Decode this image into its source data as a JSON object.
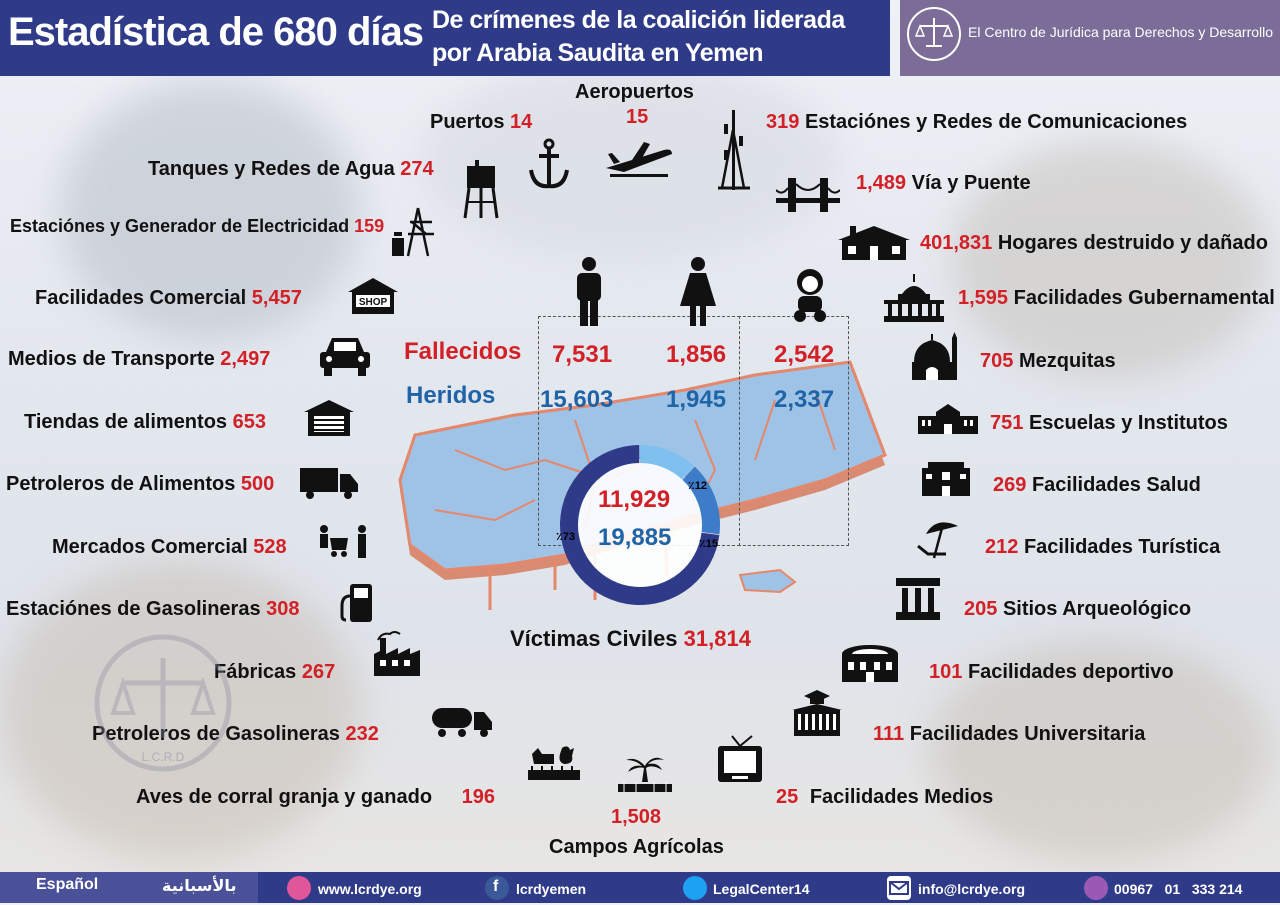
{
  "header": {
    "title": "Estadística de 680 días",
    "subtitle": "De crímenes de la coalición liderada por Arabia Saudita en Yemen",
    "org_name": "El Centro de Jurídica para Derechos y Desarrollo",
    "org_logo_text": "L.C.R.D"
  },
  "left_items": [
    {
      "label": "Puertos",
      "value": "14",
      "icon": "anchor-icon"
    },
    {
      "label": "Tanques y Redes de Agua",
      "value": "274",
      "icon": "water-tower-icon"
    },
    {
      "label": "Estaciónes y Generador de Electricidad",
      "value": "159",
      "icon": "power-station-icon"
    },
    {
      "label": "Facilidades Comercial",
      "value": "5,457",
      "icon": "shop-icon",
      "icon_text": "SHOP"
    },
    {
      "label": "Medios de Transporte",
      "value": "2,497",
      "icon": "car-icon"
    },
    {
      "label": "Tiendas de alimentos",
      "value": "653",
      "icon": "store-icon"
    },
    {
      "label": "Petroleros de Alimentos",
      "value": "500",
      "icon": "truck-icon"
    },
    {
      "label": "Mercados Comercial",
      "value": "528",
      "icon": "market-icon"
    },
    {
      "label": "Estaciónes de Gasolineras",
      "value": "308",
      "icon": "fuel-pump-icon"
    },
    {
      "label": "Fábricas",
      "value": "267",
      "icon": "factory-icon"
    },
    {
      "label": "Petroleros de Gasolineras",
      "value": "232",
      "icon": "tanker-truck-icon"
    },
    {
      "label": "Aves de corral granja y ganado",
      "value": "196",
      "icon": "livestock-icon"
    }
  ],
  "right_items": [
    {
      "label": "Estaciónes y Redes de Comunicaciones",
      "value": "319",
      "icon": "antenna-tower-icon"
    },
    {
      "label": "Vía y Puente",
      "value": "1,489",
      "icon": "bridge-icon"
    },
    {
      "label": "Hogares destruido y dañado",
      "value": "401,831",
      "icon": "house-icon"
    },
    {
      "label": "Facilidades Gubernamental",
      "value": "1,595",
      "icon": "government-building-icon"
    },
    {
      "label": "Mezquitas",
      "value": "705",
      "icon": "mosque-icon"
    },
    {
      "label": "Escuelas y Institutos",
      "value": "751",
      "icon": "school-icon"
    },
    {
      "label": "Facilidades Salud",
      "value": "269",
      "icon": "hospital-icon"
    },
    {
      "label": "Facilidades Turística",
      "value": "212",
      "icon": "beach-umbrella-icon"
    },
    {
      "label": "Sitios Arqueológico",
      "value": "205",
      "icon": "column-icon"
    },
    {
      "label": "Facilidades deportivo",
      "value": "101",
      "icon": "stadium-icon"
    },
    {
      "label": "Facilidades Universitaria",
      "value": "111",
      "icon": "university-icon"
    },
    {
      "label": "Facilidades Medios",
      "value": "25",
      "icon": "tv-icon"
    }
  ],
  "top_center": {
    "label": "Aeropuertos",
    "value": "15",
    "icon": "airplane-icon"
  },
  "bottom_center": {
    "label": "Campos Agrícolas",
    "value": "1,508",
    "icon": "farm-field-icon"
  },
  "casualties": {
    "fallecidos_label": "Fallecidos",
    "heridos_label": "Heridos",
    "groups": [
      "man",
      "woman",
      "child"
    ],
    "fallecidos": [
      "7,531",
      "1,856",
      "2,542"
    ],
    "heridos": [
      "15,603",
      "1,945",
      "2,337"
    ],
    "total_fallecidos": "11,929",
    "total_heridos": "19,885",
    "pct_men": "٪73",
    "pct_women": "٪12",
    "pct_children": "٪15",
    "share_men": 0.73,
    "share_women": 0.12,
    "share_children": 0.15,
    "victims_label": "Víctimas Civiles",
    "victims_value": "31,814"
  },
  "colors": {
    "header_bg": "#2f3b88",
    "org_bg": "#7b6d98",
    "number_red": "#d32027",
    "heridos_blue": "#1f64a6",
    "map_fill": "#9fc3e6",
    "map_border": "#e4876a"
  },
  "footer": {
    "lang_es": "Español",
    "lang_ar": "بالأسبانية",
    "website": "www.lcrdye.org",
    "facebook": "lcrdyemen",
    "twitter": "LegalCenter14",
    "email": "info@lcrdye.org",
    "phone": "00967   01   333 214"
  }
}
